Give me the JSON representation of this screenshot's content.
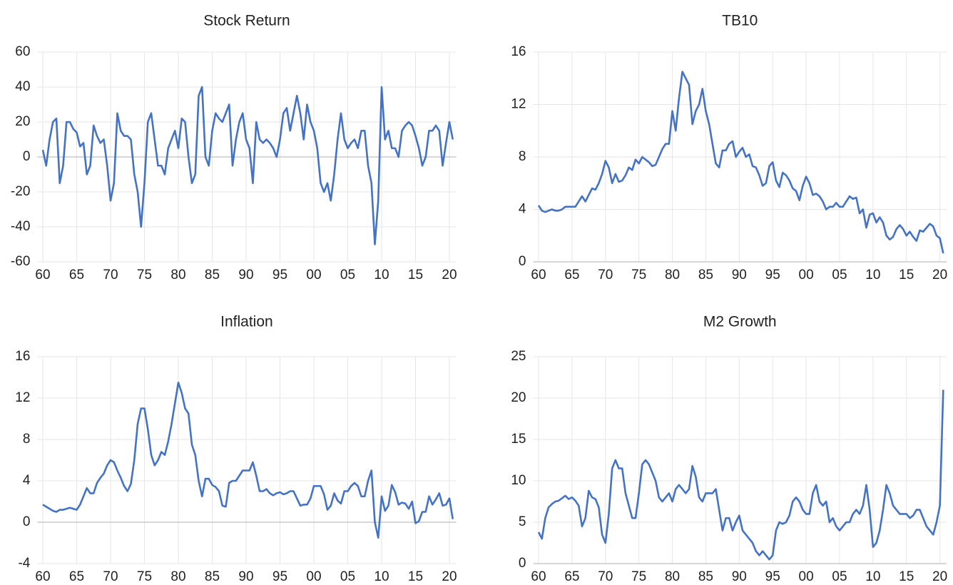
{
  "chart_data": [
    {
      "type": "line",
      "title": "Stock Return",
      "color": "#4472c4",
      "grid": true,
      "x": [
        1960,
        1960.5,
        1961,
        1961.5,
        1962,
        1962.5,
        1963,
        1963.5,
        1964,
        1964.5,
        1965,
        1965.5,
        1966,
        1966.5,
        1967,
        1967.5,
        1968,
        1968.5,
        1969,
        1969.5,
        1970,
        1970.5,
        1971,
        1971.5,
        1972,
        1972.5,
        1973,
        1973.5,
        1974,
        1974.5,
        1975,
        1975.5,
        1976,
        1976.5,
        1977,
        1977.5,
        1978,
        1978.5,
        1979,
        1979.5,
        1980,
        1980.5,
        1981,
        1981.5,
        1982,
        1982.5,
        1983,
        1983.5,
        1984,
        1984.5,
        1985,
        1985.5,
        1986,
        1986.5,
        1987,
        1987.5,
        1988,
        1988.5,
        1989,
        1989.5,
        1990,
        1990.5,
        1991,
        1991.5,
        1992,
        1992.5,
        1993,
        1993.5,
        1994,
        1994.5,
        1995,
        1995.5,
        1996,
        1996.5,
        1997,
        1997.5,
        1998,
        1998.5,
        1999,
        1999.5,
        2000,
        2000.5,
        2001,
        2001.5,
        2002,
        2002.5,
        2003,
        2003.5,
        2004,
        2004.5,
        2005,
        2005.5,
        2006,
        2006.5,
        2007,
        2007.5,
        2008,
        2008.5,
        2009,
        2009.5,
        2010,
        2010.5,
        2011,
        2011.5,
        2012,
        2012.5,
        2013,
        2013.5,
        2014,
        2014.5,
        2015,
        2015.5,
        2016,
        2016.5,
        2017,
        2017.5,
        2018,
        2018.5,
        2019,
        2019.5,
        2020,
        2020.5
      ],
      "values": [
        4,
        -5,
        10,
        20,
        22,
        -15,
        -5,
        20,
        20,
        16,
        14,
        6,
        8,
        -10,
        -5,
        18,
        12,
        8,
        10,
        -5,
        -25,
        -15,
        25,
        15,
        12,
        12,
        10,
        -10,
        -20,
        -40,
        -15,
        20,
        25,
        10,
        -5,
        -5,
        -10,
        5,
        10,
        15,
        5,
        22,
        20,
        0,
        -15,
        -10,
        35,
        40,
        0,
        -5,
        15,
        25,
        22,
        20,
        25,
        30,
        -5,
        10,
        20,
        25,
        10,
        5,
        -15,
        20,
        10,
        8,
        10,
        8,
        5,
        0,
        10,
        25,
        28,
        15,
        25,
        35,
        25,
        10,
        30,
        20,
        15,
        5,
        -15,
        -20,
        -15,
        -25,
        -10,
        10,
        25,
        10,
        5,
        8,
        10,
        5,
        15,
        15,
        -5,
        -15,
        -50,
        -25,
        40,
        10,
        15,
        5,
        5,
        0,
        15,
        18,
        20,
        18,
        12,
        5,
        -5,
        0,
        15,
        15,
        18,
        15,
        -5,
        8,
        20,
        10
      ],
      "xlim": [
        1959.2,
        2021
      ],
      "xticks": [
        {
          "value": 1960,
          "label": "60"
        },
        {
          "value": 1965,
          "label": "65"
        },
        {
          "value": 1970,
          "label": "70"
        },
        {
          "value": 1975,
          "label": "75"
        },
        {
          "value": 1980,
          "label": "80"
        },
        {
          "value": 1985,
          "label": "85"
        },
        {
          "value": 1990,
          "label": "90"
        },
        {
          "value": 1995,
          "label": "95"
        },
        {
          "value": 2000,
          "label": "00"
        },
        {
          "value": 2005,
          "label": "05"
        },
        {
          "value": 2010,
          "label": "10"
        },
        {
          "value": 2015,
          "label": "15"
        },
        {
          "value": 2020,
          "label": "20"
        }
      ],
      "ylim": [
        -60,
        60
      ],
      "yticks": [
        -60,
        -40,
        -20,
        0,
        20,
        40,
        60
      ]
    },
    {
      "type": "line",
      "title": "TB10",
      "color": "#4472c4",
      "grid": true,
      "x": [
        1960,
        1960.5,
        1961,
        1961.5,
        1962,
        1962.5,
        1963,
        1963.5,
        1964,
        1964.5,
        1965,
        1965.5,
        1966,
        1966.5,
        1967,
        1967.5,
        1968,
        1968.5,
        1969,
        1969.5,
        1970,
        1970.5,
        1971,
        1971.5,
        1972,
        1972.5,
        1973,
        1973.5,
        1974,
        1974.5,
        1975,
        1975.5,
        1976,
        1976.5,
        1977,
        1977.5,
        1978,
        1978.5,
        1979,
        1979.5,
        1980,
        1980.5,
        1981,
        1981.5,
        1982,
        1982.5,
        1983,
        1983.5,
        1984,
        1984.5,
        1985,
        1985.5,
        1986,
        1986.5,
        1987,
        1987.5,
        1988,
        1988.5,
        1989,
        1989.5,
        1990,
        1990.5,
        1991,
        1991.5,
        1992,
        1992.5,
        1993,
        1993.5,
        1994,
        1994.5,
        1995,
        1995.5,
        1996,
        1996.5,
        1997,
        1997.5,
        1998,
        1998.5,
        1999,
        1999.5,
        2000,
        2000.5,
        2001,
        2001.5,
        2002,
        2002.5,
        2003,
        2003.5,
        2004,
        2004.5,
        2005,
        2005.5,
        2006,
        2006.5,
        2007,
        2007.5,
        2008,
        2008.5,
        2009,
        2009.5,
        2010,
        2010.5,
        2011,
        2011.5,
        2012,
        2012.5,
        2013,
        2013.5,
        2014,
        2014.5,
        2015,
        2015.5,
        2016,
        2016.5,
        2017,
        2017.5,
        2018,
        2018.5,
        2019,
        2019.5,
        2020,
        2020.5
      ],
      "values": [
        4.3,
        3.9,
        3.8,
        3.9,
        4.0,
        3.9,
        3.9,
        4.0,
        4.2,
        4.2,
        4.2,
        4.2,
        4.6,
        5.0,
        4.6,
        5.1,
        5.6,
        5.5,
        6.0,
        6.7,
        7.7,
        7.2,
        6.0,
        6.7,
        6.1,
        6.2,
        6.6,
        7.2,
        7.0,
        7.8,
        7.5,
        8.0,
        7.8,
        7.6,
        7.3,
        7.4,
        8.0,
        8.6,
        9.0,
        9.0,
        11.5,
        10.0,
        12.5,
        14.5,
        14.0,
        13.5,
        10.5,
        11.5,
        12.0,
        13.2,
        11.5,
        10.5,
        9.0,
        7.5,
        7.2,
        8.5,
        8.5,
        9.0,
        9.2,
        8.0,
        8.4,
        8.7,
        8.0,
        8.2,
        7.3,
        7.2,
        6.6,
        5.8,
        6.0,
        7.3,
        7.6,
        6.2,
        5.7,
        6.8,
        6.6,
        6.2,
        5.6,
        5.4,
        4.7,
        5.8,
        6.5,
        6.0,
        5.1,
        5.2,
        5.0,
        4.6,
        4.0,
        4.2,
        4.2,
        4.5,
        4.2,
        4.2,
        4.6,
        5.0,
        4.8,
        4.9,
        3.7,
        4.0,
        2.6,
        3.6,
        3.7,
        3.0,
        3.4,
        3.0,
        2.0,
        1.7,
        1.9,
        2.5,
        2.8,
        2.5,
        2.0,
        2.3,
        1.9,
        1.6,
        2.4,
        2.3,
        2.6,
        2.9,
        2.7,
        2.0,
        1.8,
        0.65
      ],
      "xlim": [
        1959.2,
        2021
      ],
      "xticks": [
        {
          "value": 1960,
          "label": "60"
        },
        {
          "value": 1965,
          "label": "65"
        },
        {
          "value": 1970,
          "label": "70"
        },
        {
          "value": 1975,
          "label": "75"
        },
        {
          "value": 1980,
          "label": "80"
        },
        {
          "value": 1985,
          "label": "85"
        },
        {
          "value": 1990,
          "label": "90"
        },
        {
          "value": 1995,
          "label": "95"
        },
        {
          "value": 2000,
          "label": "00"
        },
        {
          "value": 2005,
          "label": "05"
        },
        {
          "value": 2010,
          "label": "10"
        },
        {
          "value": 2015,
          "label": "15"
        },
        {
          "value": 2020,
          "label": "20"
        }
      ],
      "ylim": [
        0,
        16
      ],
      "yticks": [
        0,
        4,
        8,
        12,
        16
      ]
    },
    {
      "type": "line",
      "title": "Inflation",
      "color": "#4472c4",
      "grid": true,
      "x": [
        1960,
        1960.5,
        1961,
        1961.5,
        1962,
        1962.5,
        1963,
        1963.5,
        1964,
        1964.5,
        1965,
        1965.5,
        1966,
        1966.5,
        1967,
        1967.5,
        1968,
        1968.5,
        1969,
        1969.5,
        1970,
        1970.5,
        1971,
        1971.5,
        1972,
        1972.5,
        1973,
        1973.5,
        1974,
        1974.5,
        1975,
        1975.5,
        1976,
        1976.5,
        1977,
        1977.5,
        1978,
        1978.5,
        1979,
        1979.5,
        1980,
        1980.5,
        1981,
        1981.5,
        1982,
        1982.5,
        1983,
        1983.5,
        1984,
        1984.5,
        1985,
        1985.5,
        1986,
        1986.5,
        1987,
        1987.5,
        1988,
        1988.5,
        1989,
        1989.5,
        1990,
        1990.5,
        1991,
        1991.5,
        1992,
        1992.5,
        1993,
        1993.5,
        1994,
        1994.5,
        1995,
        1995.5,
        1996,
        1996.5,
        1997,
        1997.5,
        1998,
        1998.5,
        1999,
        1999.5,
        2000,
        2000.5,
        2001,
        2001.5,
        2002,
        2002.5,
        2003,
        2003.5,
        2004,
        2004.5,
        2005,
        2005.5,
        2006,
        2006.5,
        2007,
        2007.5,
        2008,
        2008.5,
        2009,
        2009.5,
        2010,
        2010.5,
        2011,
        2011.5,
        2012,
        2012.5,
        2013,
        2013.5,
        2014,
        2014.5,
        2015,
        2015.5,
        2016,
        2016.5,
        2017,
        2017.5,
        2018,
        2018.5,
        2019,
        2019.5,
        2020,
        2020.5
      ],
      "values": [
        1.7,
        1.5,
        1.3,
        1.1,
        1.0,
        1.2,
        1.2,
        1.3,
        1.4,
        1.3,
        1.2,
        1.7,
        2.5,
        3.3,
        2.8,
        2.8,
        3.8,
        4.3,
        4.7,
        5.5,
        6.0,
        5.8,
        5.0,
        4.3,
        3.5,
        3.0,
        3.7,
        6.0,
        9.5,
        11.0,
        11.0,
        9.0,
        6.5,
        5.5,
        6.0,
        6.8,
        6.5,
        7.8,
        9.5,
        11.5,
        13.5,
        12.5,
        11.0,
        10.5,
        7.5,
        6.5,
        4.0,
        2.5,
        4.2,
        4.2,
        3.6,
        3.4,
        3.0,
        1.6,
        1.5,
        3.8,
        4.0,
        4.0,
        4.5,
        5.0,
        5.0,
        5.0,
        5.8,
        4.5,
        3.0,
        3.0,
        3.2,
        2.8,
        2.6,
        2.8,
        2.9,
        2.7,
        2.8,
        3.0,
        3.0,
        2.3,
        1.6,
        1.7,
        1.7,
        2.3,
        3.5,
        3.5,
        3.5,
        2.7,
        1.2,
        1.6,
        2.8,
        2.1,
        1.8,
        3.0,
        3.0,
        3.5,
        3.8,
        3.5,
        2.5,
        2.5,
        4.0,
        5.0,
        0.0,
        -1.5,
        2.5,
        1.1,
        1.6,
        3.6,
        2.9,
        1.7,
        1.9,
        1.8,
        1.3,
        2.0,
        -0.1,
        0.1,
        1.0,
        1.0,
        2.5,
        1.7,
        2.2,
        2.8,
        1.6,
        1.7,
        2.3,
        0.3
      ],
      "xlim": [
        1959.2,
        2021
      ],
      "xticks": [
        {
          "value": 1960,
          "label": "60"
        },
        {
          "value": 1965,
          "label": "65"
        },
        {
          "value": 1970,
          "label": "70"
        },
        {
          "value": 1975,
          "label": "75"
        },
        {
          "value": 1980,
          "label": "80"
        },
        {
          "value": 1985,
          "label": "85"
        },
        {
          "value": 1990,
          "label": "90"
        },
        {
          "value": 1995,
          "label": "95"
        },
        {
          "value": 2000,
          "label": "00"
        },
        {
          "value": 2005,
          "label": "05"
        },
        {
          "value": 2010,
          "label": "10"
        },
        {
          "value": 2015,
          "label": "15"
        },
        {
          "value": 2020,
          "label": "20"
        }
      ],
      "ylim": [
        -4,
        16
      ],
      "yticks": [
        -4,
        0,
        4,
        8,
        12,
        16
      ]
    },
    {
      "type": "line",
      "title": "M2 Growth",
      "color": "#4472c4",
      "grid": true,
      "x": [
        1960,
        1960.5,
        1961,
        1961.5,
        1962,
        1962.5,
        1963,
        1963.5,
        1964,
        1964.5,
        1965,
        1965.5,
        1966,
        1966.5,
        1967,
        1967.5,
        1968,
        1968.5,
        1969,
        1969.5,
        1970,
        1970.5,
        1971,
        1971.5,
        1972,
        1972.5,
        1973,
        1973.5,
        1974,
        1974.5,
        1975,
        1975.5,
        1976,
        1976.5,
        1977,
        1977.5,
        1978,
        1978.5,
        1979,
        1979.5,
        1980,
        1980.5,
        1981,
        1981.5,
        1982,
        1982.5,
        1983,
        1983.5,
        1984,
        1984.5,
        1985,
        1985.5,
        1986,
        1986.5,
        1987,
        1987.5,
        1988,
        1988.5,
        1989,
        1989.5,
        1990,
        1990.5,
        1991,
        1991.5,
        1992,
        1992.5,
        1993,
        1993.5,
        1994,
        1994.5,
        1995,
        1995.5,
        1996,
        1996.5,
        1997,
        1997.5,
        1998,
        1998.5,
        1999,
        1999.5,
        2000,
        2000.5,
        2001,
        2001.5,
        2002,
        2002.5,
        2003,
        2003.5,
        2004,
        2004.5,
        2005,
        2005.5,
        2006,
        2006.5,
        2007,
        2007.5,
        2008,
        2008.5,
        2009,
        2009.5,
        2010,
        2010.5,
        2011,
        2011.5,
        2012,
        2012.5,
        2013,
        2013.5,
        2014,
        2014.5,
        2015,
        2015.5,
        2016,
        2016.5,
        2017,
        2017.5,
        2018,
        2018.5,
        2019,
        2019.5,
        2020,
        2020.5
      ],
      "values": [
        3.8,
        3.0,
        5.5,
        6.8,
        7.2,
        7.5,
        7.6,
        7.9,
        8.2,
        7.8,
        8.0,
        7.6,
        7.0,
        4.5,
        5.5,
        8.8,
        8.0,
        7.8,
        6.8,
        3.5,
        2.5,
        6.0,
        11.5,
        12.5,
        11.5,
        11.5,
        8.5,
        7.0,
        5.5,
        5.5,
        8.5,
        12.0,
        12.5,
        12.0,
        11.0,
        10.0,
        8.0,
        7.5,
        8.0,
        8.5,
        7.5,
        9.0,
        9.5,
        9.0,
        8.5,
        9.0,
        11.8,
        10.5,
        8.0,
        7.5,
        8.5,
        8.5,
        8.5,
        9.0,
        6.5,
        4.0,
        5.5,
        5.5,
        4.0,
        5.0,
        5.8,
        4.0,
        3.5,
        3.0,
        2.5,
        1.5,
        1.0,
        1.5,
        1.0,
        0.5,
        1.0,
        4.0,
        5.0,
        4.8,
        5.0,
        5.8,
        7.5,
        8.0,
        7.5,
        6.5,
        6.0,
        6.0,
        8.5,
        9.5,
        7.5,
        7.0,
        7.5,
        5.0,
        5.5,
        4.5,
        4.0,
        4.5,
        5.0,
        5.0,
        6.0,
        6.5,
        6.0,
        7.0,
        9.5,
        6.5,
        2.0,
        2.5,
        4.0,
        6.5,
        9.5,
        8.5,
        7.0,
        6.5,
        6.0,
        6.0,
        6.0,
        5.5,
        5.8,
        6.5,
        6.5,
        5.5,
        4.5,
        4.0,
        3.5,
        5.0,
        7.0,
        21.0
      ],
      "xlim": [
        1959.2,
        2021
      ],
      "xticks": [
        {
          "value": 1960,
          "label": "60"
        },
        {
          "value": 1965,
          "label": "65"
        },
        {
          "value": 1970,
          "label": "70"
        },
        {
          "value": 1975,
          "label": "75"
        },
        {
          "value": 1980,
          "label": "80"
        },
        {
          "value": 1985,
          "label": "85"
        },
        {
          "value": 1990,
          "label": "90"
        },
        {
          "value": 1995,
          "label": "95"
        },
        {
          "value": 2000,
          "label": "00"
        },
        {
          "value": 2005,
          "label": "05"
        },
        {
          "value": 2010,
          "label": "10"
        },
        {
          "value": 2015,
          "label": "15"
        },
        {
          "value": 2020,
          "label": "20"
        }
      ],
      "ylim": [
        0,
        25
      ],
      "yticks": [
        0,
        5,
        10,
        15,
        20,
        25
      ]
    }
  ]
}
